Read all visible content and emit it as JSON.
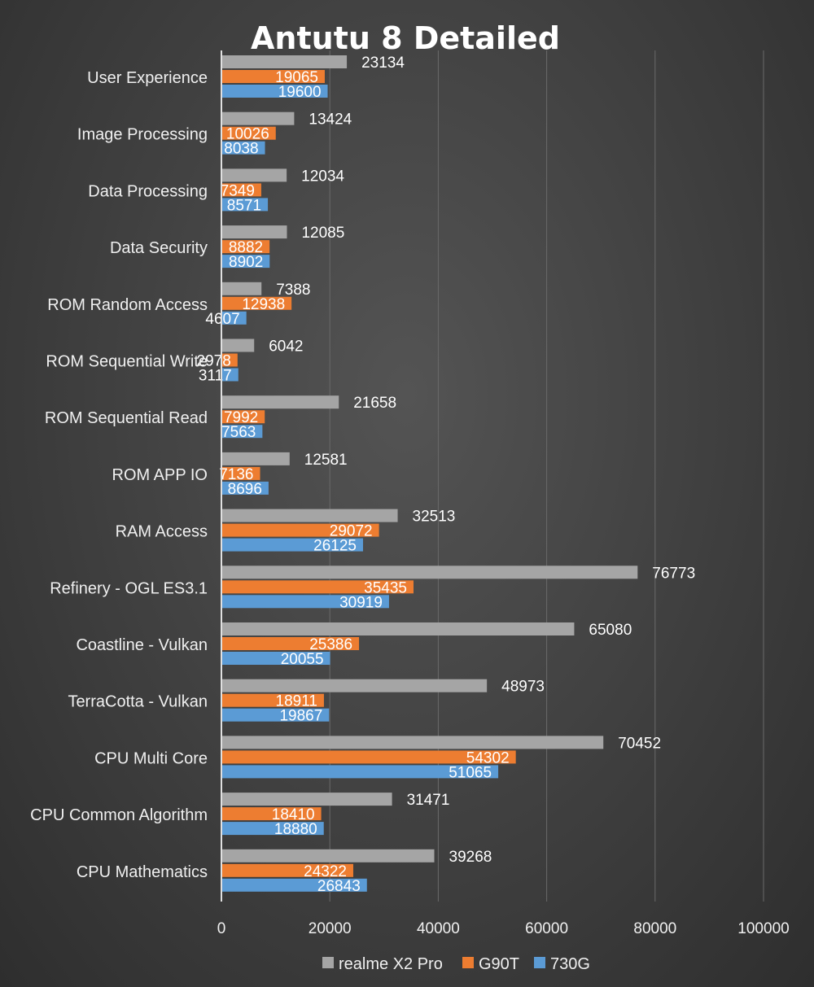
{
  "chart_data": {
    "type": "bar",
    "orientation": "horizontal",
    "title": "Antutu 8 Detailed",
    "xlabel": "",
    "ylabel": "",
    "xlim": [
      0,
      100000
    ],
    "xticks": [
      "0",
      "20000",
      "40000",
      "60000",
      "80000",
      "100000"
    ],
    "grid": true,
    "legend_position": "bottom",
    "categories": [
      "User Experience",
      "Image Processing",
      "Data Processing",
      "Data Security",
      "ROM Random Access",
      "ROM Sequential Write",
      "ROM Sequential Read",
      "ROM APP IO",
      "RAM Access",
      "Refinery - OGL ES3.1",
      "Coastline - Vulkan",
      "TerraCotta - Vulkan",
      "CPU Multi Core",
      "CPU Common Algorithm",
      "CPU Mathematics"
    ],
    "series": [
      {
        "name": "realme X2 Pro",
        "color": "#a5a5a5",
        "values": [
          23134,
          13424,
          12034,
          12085,
          7388,
          6042,
          21658,
          12581,
          32513,
          76773,
          65080,
          48973,
          70452,
          31471,
          39268
        ]
      },
      {
        "name": "G90T",
        "color": "#ed7d31",
        "values": [
          19065,
          10026,
          7349,
          8882,
          12938,
          2978,
          7992,
          7136,
          29072,
          35435,
          25386,
          18911,
          54302,
          18410,
          24322
        ]
      },
      {
        "name": "730G",
        "color": "#5b9bd5",
        "values": [
          19600,
          8038,
          8571,
          8902,
          4607,
          3117,
          7563,
          8696,
          26125,
          30919,
          20055,
          19867,
          51065,
          18880,
          26843
        ]
      }
    ]
  }
}
